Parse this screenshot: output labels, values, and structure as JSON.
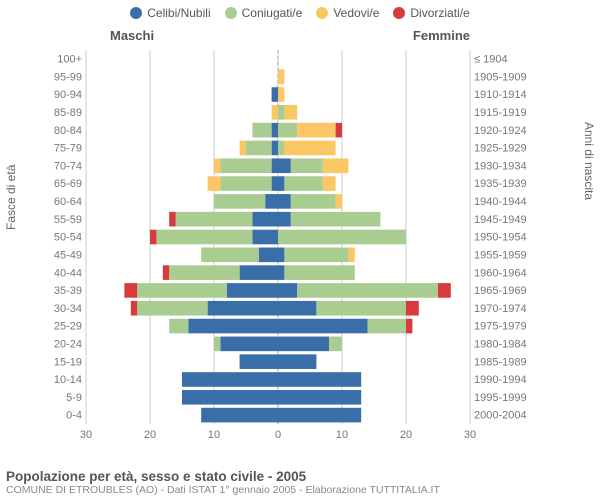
{
  "legend": [
    {
      "label": "Celibi/Nubili",
      "color": "#3a6ea8"
    },
    {
      "label": "Coniugati/e",
      "color": "#a9cd91"
    },
    {
      "label": "Vedovi/e",
      "color": "#fac764"
    },
    {
      "label": "Divorziati/e",
      "color": "#d73b3e"
    }
  ],
  "headers": {
    "male": "Maschi",
    "female": "Femmine"
  },
  "axis_left_title": "Fasce di età",
  "axis_right_title": "Anni di nascita",
  "x_axis": {
    "max": 30,
    "ticks": [
      0,
      10,
      20,
      30
    ]
  },
  "footer_title": "Popolazione per età, sesso e stato civile - 2005",
  "footer_sub": "COMUNE DI ETROUBLES (AO) - Dati ISTAT 1° gennaio 2005 - Elaborazione TUTTITALIA.IT",
  "colors": {
    "background": "#ffffff",
    "grid": "#cccccc",
    "center": "#999999",
    "text": "#777777"
  },
  "rows": [
    {
      "age": "100+",
      "birth": "≤ 1904",
      "m": [
        0,
        0,
        0,
        0
      ],
      "f": [
        0,
        0,
        0,
        0
      ]
    },
    {
      "age": "95-99",
      "birth": "1905-1909",
      "m": [
        0,
        0,
        0,
        0
      ],
      "f": [
        0,
        0,
        1,
        0
      ]
    },
    {
      "age": "90-94",
      "birth": "1910-1914",
      "m": [
        1,
        0,
        0,
        0
      ],
      "f": [
        0,
        0,
        1,
        0
      ]
    },
    {
      "age": "85-89",
      "birth": "1915-1919",
      "m": [
        0,
        0,
        1,
        0
      ],
      "f": [
        0,
        1,
        2,
        0
      ]
    },
    {
      "age": "80-84",
      "birth": "1920-1924",
      "m": [
        1,
        3,
        0,
        0
      ],
      "f": [
        0,
        3,
        6,
        1
      ]
    },
    {
      "age": "75-79",
      "birth": "1925-1929",
      "m": [
        1,
        4,
        1,
        0
      ],
      "f": [
        0,
        1,
        8,
        0
      ]
    },
    {
      "age": "70-74",
      "birth": "1930-1934",
      "m": [
        1,
        8,
        1,
        0
      ],
      "f": [
        2,
        5,
        4,
        0
      ]
    },
    {
      "age": "65-69",
      "birth": "1935-1939",
      "m": [
        1,
        8,
        2,
        0
      ],
      "f": [
        1,
        6,
        2,
        0
      ]
    },
    {
      "age": "60-64",
      "birth": "1940-1944",
      "m": [
        2,
        8,
        0,
        0
      ],
      "f": [
        2,
        7,
        1,
        0
      ]
    },
    {
      "age": "55-59",
      "birth": "1945-1949",
      "m": [
        4,
        12,
        0,
        1
      ],
      "f": [
        2,
        14,
        0,
        0
      ]
    },
    {
      "age": "50-54",
      "birth": "1950-1954",
      "m": [
        4,
        15,
        0,
        1
      ],
      "f": [
        0,
        20,
        0,
        0
      ]
    },
    {
      "age": "45-49",
      "birth": "1955-1959",
      "m": [
        3,
        9,
        0,
        0
      ],
      "f": [
        1,
        10,
        1,
        0
      ]
    },
    {
      "age": "40-44",
      "birth": "1960-1964",
      "m": [
        6,
        11,
        0,
        1
      ],
      "f": [
        1,
        11,
        0,
        0
      ]
    },
    {
      "age": "35-39",
      "birth": "1965-1969",
      "m": [
        8,
        14,
        0,
        2
      ],
      "f": [
        3,
        22,
        0,
        2
      ]
    },
    {
      "age": "30-34",
      "birth": "1970-1974",
      "m": [
        11,
        11,
        0,
        1
      ],
      "f": [
        6,
        14,
        0,
        2
      ]
    },
    {
      "age": "25-29",
      "birth": "1975-1979",
      "m": [
        14,
        3,
        0,
        0
      ],
      "f": [
        14,
        6,
        0,
        1
      ]
    },
    {
      "age": "20-24",
      "birth": "1980-1984",
      "m": [
        9,
        1,
        0,
        0
      ],
      "f": [
        8,
        2,
        0,
        0
      ]
    },
    {
      "age": "15-19",
      "birth": "1985-1989",
      "m": [
        6,
        0,
        0,
        0
      ],
      "f": [
        6,
        0,
        0,
        0
      ]
    },
    {
      "age": "10-14",
      "birth": "1990-1994",
      "m": [
        15,
        0,
        0,
        0
      ],
      "f": [
        13,
        0,
        0,
        0
      ]
    },
    {
      "age": "5-9",
      "birth": "1995-1999",
      "m": [
        15,
        0,
        0,
        0
      ],
      "f": [
        13,
        0,
        0,
        0
      ]
    },
    {
      "age": "0-4",
      "birth": "2000-2004",
      "m": [
        12,
        0,
        0,
        0
      ],
      "f": [
        13,
        0,
        0,
        0
      ]
    }
  ]
}
